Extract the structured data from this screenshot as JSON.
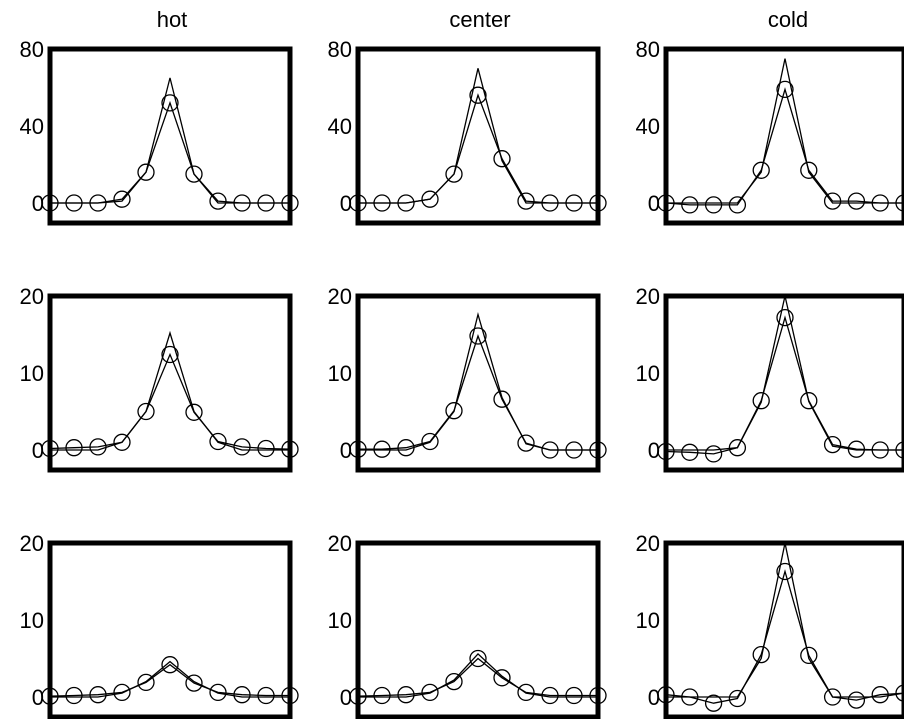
{
  "columns": [
    "hot",
    "center",
    "cold"
  ],
  "chart_data": [
    {
      "type": "line",
      "title": "hot",
      "x": [
        1,
        2,
        3,
        4,
        5,
        6,
        7,
        8,
        9,
        10,
        11
      ],
      "ylim": [
        0,
        80
      ],
      "yticks": [
        0,
        40,
        80
      ],
      "series": [
        {
          "values": [
            0,
            0,
            0,
            1,
            16,
            65,
            15,
            0,
            0,
            0,
            0
          ]
        },
        {
          "values": [
            0,
            0,
            0,
            2,
            16,
            52,
            15,
            1,
            0,
            0,
            0
          ],
          "marker": "circle"
        }
      ]
    },
    {
      "type": "line",
      "title": "center",
      "x": [
        1,
        2,
        3,
        4,
        5,
        6,
        7,
        8,
        9,
        10,
        11
      ],
      "ylim": [
        0,
        80
      ],
      "yticks": [
        0,
        40,
        80
      ],
      "series": [
        {
          "values": [
            0,
            0,
            0,
            2,
            15,
            70,
            22,
            0,
            0,
            0,
            0
          ]
        },
        {
          "values": [
            0,
            0,
            0,
            2,
            15,
            56,
            23,
            1,
            0,
            0,
            0
          ],
          "marker": "circle"
        }
      ]
    },
    {
      "type": "line",
      "title": "cold",
      "x": [
        1,
        2,
        3,
        4,
        5,
        6,
        7,
        8,
        9,
        10,
        11
      ],
      "ylim": [
        0,
        80
      ],
      "yticks": [
        0,
        40,
        80
      ],
      "series": [
        {
          "values": [
            0,
            0,
            0,
            0,
            16,
            75,
            16,
            0,
            0,
            0,
            0
          ]
        },
        {
          "values": [
            0,
            -1,
            -1,
            -1,
            17,
            59,
            17,
            1,
            1,
            0,
            0
          ],
          "marker": "circle"
        }
      ]
    },
    {
      "type": "line",
      "x": [
        1,
        2,
        3,
        4,
        5,
        6,
        7,
        8,
        9,
        10,
        11
      ],
      "ylim": [
        0,
        20
      ],
      "yticks": [
        0,
        10,
        20
      ],
      "series": [
        {
          "values": [
            0,
            0,
            0,
            1,
            5,
            15.2,
            5,
            1,
            0,
            0,
            0
          ]
        },
        {
          "values": [
            0.2,
            0.3,
            0.4,
            1,
            5,
            12.4,
            4.9,
            1.1,
            0.4,
            0.2,
            0.1
          ],
          "marker": "circle"
        }
      ]
    },
    {
      "type": "line",
      "x": [
        1,
        2,
        3,
        4,
        5,
        6,
        7,
        8,
        9,
        10,
        11
      ],
      "ylim": [
        0,
        20
      ],
      "yticks": [
        0,
        10,
        20
      ],
      "series": [
        {
          "values": [
            0,
            0,
            0,
            1,
            5,
            17.6,
            6.8,
            0.8,
            0,
            0,
            0
          ]
        },
        {
          "values": [
            0.1,
            0.1,
            0.3,
            1.1,
            5.1,
            14.8,
            6.6,
            0.9,
            0,
            0,
            0
          ],
          "marker": "circle"
        }
      ]
    },
    {
      "type": "line",
      "x": [
        1,
        2,
        3,
        4,
        5,
        6,
        7,
        8,
        9,
        10,
        11
      ],
      "ylim": [
        0,
        20
      ],
      "yticks": [
        0,
        10,
        20
      ],
      "series": [
        {
          "values": [
            0,
            0,
            0,
            0.3,
            6.2,
            20,
            6.3,
            0.5,
            0,
            0,
            0
          ]
        },
        {
          "values": [
            -0.2,
            -0.3,
            -0.5,
            0.3,
            6.4,
            17.2,
            6.4,
            0.7,
            0.1,
            0,
            0
          ],
          "marker": "circle"
        }
      ]
    },
    {
      "type": "line",
      "x": [
        1,
        2,
        3,
        4,
        5,
        6,
        7,
        8,
        9,
        10,
        11
      ],
      "ylim": [
        0,
        20
      ],
      "yticks": [
        0,
        10,
        20
      ],
      "series": [
        {
          "values": [
            0,
            0,
            0,
            0.5,
            2,
            4.6,
            2,
            0.5,
            0,
            0,
            0
          ]
        },
        {
          "values": [
            0.1,
            0.2,
            0.3,
            0.6,
            1.9,
            4.2,
            1.8,
            0.6,
            0.3,
            0.2,
            0.2
          ],
          "marker": "circle"
        }
      ]
    },
    {
      "type": "line",
      "x": [
        1,
        2,
        3,
        4,
        5,
        6,
        7,
        8,
        9,
        10,
        11
      ],
      "ylim": [
        0,
        20
      ],
      "yticks": [
        0,
        10,
        20
      ],
      "series": [
        {
          "values": [
            0,
            0,
            0,
            0.5,
            2.2,
            5.6,
            2.7,
            0.5,
            0,
            0,
            0
          ]
        },
        {
          "values": [
            0.1,
            0.2,
            0.3,
            0.6,
            2,
            5,
            2.5,
            0.6,
            0.2,
            0.2,
            0.2
          ],
          "marker": "circle"
        }
      ]
    },
    {
      "type": "line",
      "x": [
        1,
        2,
        3,
        4,
        5,
        6,
        7,
        8,
        9,
        10,
        11
      ],
      "ylim": [
        0,
        20
      ],
      "yticks": [
        0,
        10,
        20
      ],
      "series": [
        {
          "values": [
            0,
            0,
            0,
            0,
            5,
            20,
            5,
            0,
            0,
            0,
            0.5
          ]
        },
        {
          "values": [
            0.3,
            0,
            -0.8,
            -0.2,
            5.5,
            16.3,
            5.4,
            0,
            -0.4,
            0.3,
            0.5
          ],
          "marker": "circle"
        }
      ]
    }
  ]
}
